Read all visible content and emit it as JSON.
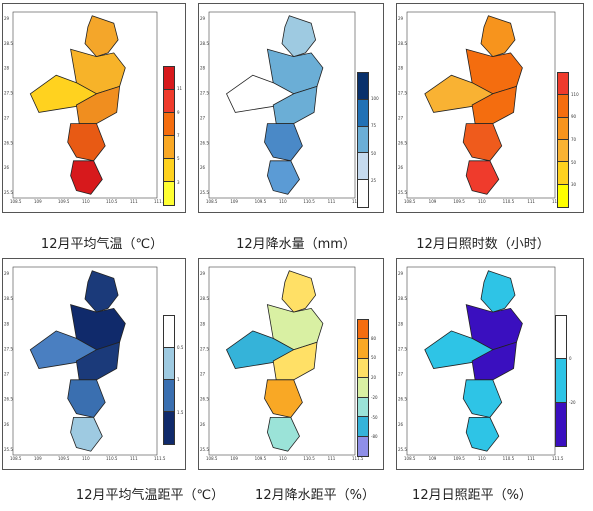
{
  "map_panels": [
    {
      "id": "avg-temp",
      "caption": "12月平均气温（℃）",
      "colors": [
        "#d7191c",
        "#ef3b2c",
        "#f46d0f",
        "#f9a825",
        "#ffd21f",
        "#ffff33"
      ],
      "legend_labels": [
        "11",
        "9",
        "7",
        "5",
        "3"
      ],
      "region_colors": [
        "#f4a62a",
        "#f7b329",
        "#ffd21f",
        "#f08e1f",
        "#e85a14",
        "#d7191c"
      ]
    },
    {
      "id": "precip",
      "caption": "12月降水量（mm）",
      "colors": [
        "#08306b",
        "#2171b5",
        "#6baed6",
        "#c6dbef",
        "#ffffff"
      ],
      "legend_labels": [
        "100",
        "75",
        "50",
        "25"
      ],
      "region_colors": [
        "#9ecae1",
        "#6baed6",
        "#ffffff",
        "#6baed6",
        "#4a89c7",
        "#5b9bd5"
      ]
    },
    {
      "id": "sunshine",
      "caption": "12月日照时数（小时）",
      "colors": [
        "#ef3b2c",
        "#f46d0f",
        "#f7941d",
        "#f9b233",
        "#ffd21f",
        "#ffff00"
      ],
      "legend_labels": [
        "110",
        "90",
        "70",
        "50",
        "30"
      ],
      "region_colors": [
        "#f7941d",
        "#f46d0f",
        "#f9b233",
        "#f46d0f",
        "#ef5b1c",
        "#ef3b2c"
      ]
    },
    {
      "id": "temp-anomaly",
      "caption": "12月平均气温距平（℃）",
      "colors": [
        "#ffffff",
        "#9ecae1",
        "#3a6fb0",
        "#102a6b"
      ],
      "legend_labels": [
        "0.5",
        "1",
        "1.5"
      ],
      "region_colors": [
        "#1b3a7a",
        "#102a6b",
        "#4a7fc1",
        "#1b3a7a",
        "#3a6fb0",
        "#9ecae1"
      ]
    },
    {
      "id": "precip-anomaly",
      "caption": "12月降水距平（%）",
      "colors": [
        "#f46d0f",
        "#f9a825",
        "#ffe066",
        "#d9f0a3",
        "#9be3d8",
        "#35b3d9",
        "#8f8fe8"
      ],
      "legend_labels": [
        "80",
        "50",
        "20",
        "-20",
        "-50",
        "-80"
      ],
      "region_colors": [
        "#ffe066",
        "#d9f0a3",
        "#35b3d9",
        "#ffe066",
        "#f9a825",
        "#9be3d8"
      ]
    },
    {
      "id": "sunshine-anomaly",
      "caption": "12月日照距平（%）",
      "colors": [
        "#ffffff",
        "#2ec4e6",
        "#3a0fbf"
      ],
      "legend_labels": [
        "0",
        "-20"
      ],
      "region_colors": [
        "#2ec4e6",
        "#3a0fbf",
        "#2ec4e6",
        "#3a0fbf",
        "#2ec4e6",
        "#2ec4e6"
      ]
    }
  ],
  "x_ticks": [
    "108.5",
    "109",
    "109.5",
    "110",
    "110.5",
    "111",
    "111.5"
  ],
  "y_ticks": [
    "29",
    "28.5",
    "28",
    "27.5",
    "27",
    "26.5",
    "26",
    "25.5"
  ]
}
